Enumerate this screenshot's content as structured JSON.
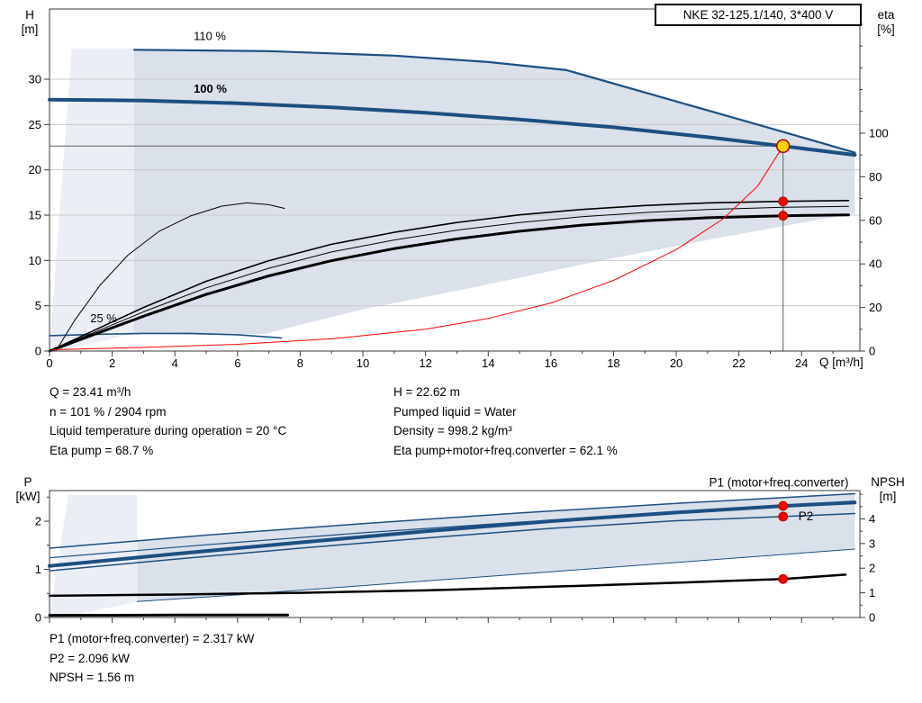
{
  "window": {
    "title_box": "NKE 32-125.1/140, 3*400 V"
  },
  "colors": {
    "curve_blue": "#1c4f82",
    "label_blue": "#2e74b5",
    "band": "#dbe1ea",
    "wedge": "#ebeff5",
    "red": "#ff0000",
    "dot_stroke": "#b00000",
    "duty_yellow": "#ffd200",
    "duty_ring": "#b00000",
    "grid": "#c9c9c9",
    "guide": "#5f5f5f",
    "axis": "#3a3a3a",
    "black": "#000000"
  },
  "chart_data": [
    {
      "name": "hq-chart",
      "type": "line",
      "x": {
        "label": "Q [m³/h]",
        "min": 0,
        "max": 25.86,
        "ticks": [
          0,
          2,
          4,
          6,
          8,
          10,
          12,
          14,
          16,
          18,
          20,
          22,
          24
        ],
        "minor_step": 1,
        "labels": true
      },
      "y_left": {
        "quantity": "H",
        "unit": "[m]",
        "min": 0,
        "max": 37.75,
        "ticks": [
          0,
          5,
          10,
          15,
          20,
          25,
          30
        ],
        "grid": true
      },
      "y_right": {
        "quantity": "eta",
        "unit": "[%]",
        "min": 0,
        "max": 157,
        "ticks": [
          0,
          20,
          40,
          60,
          80,
          100
        ],
        "minor_step": 10
      },
      "bands": [
        {
          "name": "min-flow-wedge",
          "fill": "wedge",
          "points": [
            [
              0,
              0
            ],
            [
              0.7,
              33.4
            ],
            [
              2.8,
              33.4
            ],
            [
              2.8,
              2.0
            ],
            [
              0.8,
              0.4
            ]
          ]
        },
        {
          "name": "operating-envelope",
          "fill": "band",
          "points": [
            [
              2.7,
              33.25
            ],
            [
              7,
              33.1
            ],
            [
              11,
              32.6
            ],
            [
              14,
              31.9
            ],
            [
              16.5,
              31.0
            ],
            [
              20,
              27.55
            ],
            [
              23,
              24.6
            ],
            [
              25.7,
              21.9
            ],
            [
              25.7,
              15.2
            ],
            [
              21.5,
              12.6
            ],
            [
              17.5,
              9.9
            ],
            [
              13.5,
              7.0
            ],
            [
              10,
              4.6
            ],
            [
              8,
              2.9
            ],
            [
              6.9,
              1.9
            ],
            [
              4.5,
              1.8
            ],
            [
              2.7,
              1.95
            ]
          ]
        }
      ],
      "guides": [
        {
          "type": "h",
          "v": 22.62,
          "q1": 0,
          "q2": 23.41
        },
        {
          "type": "v",
          "q": 23.41,
          "v1": 0,
          "v2": 22.62
        }
      ],
      "series": [
        {
          "name": "curve-110pct",
          "axis": "left",
          "color": "curve_blue",
          "width": 2.2,
          "points": [
            [
              2.7,
              33.25
            ],
            [
              7,
              33.1
            ],
            [
              11,
              32.6
            ],
            [
              14,
              31.9
            ],
            [
              16.5,
              31.0
            ],
            [
              20,
              27.55
            ],
            [
              23,
              24.6
            ],
            [
              25.7,
              21.9
            ]
          ]
        },
        {
          "name": "curve-100pct",
          "axis": "left",
          "color": "curve_blue",
          "width": 4,
          "points": [
            [
              0,
              27.75
            ],
            [
              3,
              27.65
            ],
            [
              6,
              27.35
            ],
            [
              9,
              26.9
            ],
            [
              12,
              26.3
            ],
            [
              15,
              25.55
            ],
            [
              18,
              24.7
            ],
            [
              21,
              23.6
            ],
            [
              23.41,
              22.62
            ],
            [
              25.7,
              21.65
            ]
          ]
        },
        {
          "name": "curve-25pct",
          "axis": "left",
          "color": "curve_blue",
          "width": 1.6,
          "points": [
            [
              0,
              1.7
            ],
            [
              1.5,
              1.85
            ],
            [
              3,
              1.95
            ],
            [
              4.5,
              1.95
            ],
            [
              6,
              1.8
            ],
            [
              7.4,
              1.45
            ]
          ]
        },
        {
          "name": "eta-curve-25pct",
          "axis": "right",
          "color": "black",
          "width": 1,
          "points": [
            [
              0.2,
              0
            ],
            [
              0.8,
              14
            ],
            [
              1.6,
              30
            ],
            [
              2.5,
              44
            ],
            [
              3.5,
              55
            ],
            [
              4.5,
              62
            ],
            [
              5.5,
              66.5
            ],
            [
              6.3,
              68
            ],
            [
              7.0,
              67.2
            ],
            [
              7.5,
              65.5
            ]
          ]
        },
        {
          "name": "eta-pump-curve",
          "axis": "right",
          "color": "black",
          "width": 1.6,
          "points": [
            [
              0,
              0
            ],
            [
              1.5,
              10
            ],
            [
              3,
              20
            ],
            [
              5,
              32
            ],
            [
              7,
              41.5
            ],
            [
              9,
              49
            ],
            [
              11,
              54.5
            ],
            [
              13,
              59
            ],
            [
              15,
              62.5
            ],
            [
              17,
              65
            ],
            [
              19,
              66.8
            ],
            [
              21,
              68
            ],
            [
              23.41,
              68.7
            ],
            [
              25.5,
              69.1
            ]
          ]
        },
        {
          "name": "eta-mid-curve",
          "axis": "right",
          "color": "black",
          "width": 1,
          "points": [
            [
              0,
              0
            ],
            [
              1.5,
              9
            ],
            [
              3,
              18
            ],
            [
              5,
              29
            ],
            [
              7,
              38
            ],
            [
              9,
              45.5
            ],
            [
              11,
              51
            ],
            [
              13,
              55.5
            ],
            [
              15,
              59
            ],
            [
              17,
              61.7
            ],
            [
              19,
              63.6
            ],
            [
              21,
              65
            ],
            [
              23.41,
              66
            ],
            [
              25.5,
              66.4
            ]
          ]
        },
        {
          "name": "eta-total-curve",
          "axis": "right",
          "color": "black",
          "width": 3,
          "points": [
            [
              0,
              0
            ],
            [
              1.5,
              8
            ],
            [
              3,
              16
            ],
            [
              5,
              26
            ],
            [
              7,
              34.5
            ],
            [
              9,
              41.5
            ],
            [
              11,
              47
            ],
            [
              13,
              51.5
            ],
            [
              15,
              55
            ],
            [
              17,
              57.8
            ],
            [
              19,
              59.8
            ],
            [
              21,
              61.2
            ],
            [
              23.41,
              62.1
            ],
            [
              25.5,
              62.5
            ]
          ]
        },
        {
          "name": "control-curve",
          "axis": "left",
          "color": "red",
          "width": 1,
          "points": [
            [
              0.1,
              0.15
            ],
            [
              3,
              0.4
            ],
            [
              6,
              0.75
            ],
            [
              9,
              1.35
            ],
            [
              12,
              2.4
            ],
            [
              14,
              3.6
            ],
            [
              16,
              5.3
            ],
            [
              18,
              7.8
            ],
            [
              20,
              11.2
            ],
            [
              21.5,
              14.6
            ],
            [
              22.6,
              18.2
            ],
            [
              23.41,
              22.62
            ]
          ]
        }
      ],
      "markers": [
        {
          "name": "eta-pump-point",
          "type": "red-dot",
          "axis": "right",
          "q": 23.41,
          "v": 68.7
        },
        {
          "name": "eta-total-point",
          "type": "red-dot",
          "axis": "right",
          "q": 23.41,
          "v": 62.1
        },
        {
          "name": "duty-point",
          "type": "yellow-dot",
          "axis": "left",
          "q": 23.41,
          "v": 22.62
        }
      ],
      "curve_labels": [
        {
          "name": "label-110pct",
          "text": "110 %",
          "q": 4.6,
          "v": 34.3
        },
        {
          "name": "label-100pct",
          "text": "100 %",
          "q": 4.6,
          "v": 28.5,
          "bold": true
        },
        {
          "name": "label-25pct",
          "text": "25 %",
          "q": 1.3,
          "v": 3.2
        }
      ]
    },
    {
      "name": "power-npsh-chart",
      "type": "line",
      "x": {
        "label": "",
        "min": 0,
        "max": 25.86,
        "ticks": [
          0,
          2,
          4,
          6,
          8,
          10,
          12,
          14,
          16,
          18,
          20,
          22,
          24
        ],
        "minor_step": 1,
        "labels": false
      },
      "y_left": {
        "quantity": "P",
        "unit": "[kW]",
        "min": 0,
        "max": 2.636,
        "ticks": [
          0,
          1,
          2
        ],
        "minor_step": 0.5,
        "grid": false
      },
      "y_right": {
        "quantity": "NPSH",
        "unit": "[m]",
        "min": 0,
        "max": 5.15,
        "ticks": [
          0,
          1,
          2,
          3,
          4
        ],
        "minor_step": 0.5
      },
      "bands": [
        {
          "name": "power-wedge",
          "fill": "wedge",
          "points": [
            [
              0,
              0.06
            ],
            [
              0.6,
              2.55
            ],
            [
              2.8,
              2.55
            ],
            [
              2.8,
              0.32
            ],
            [
              1,
              0.08
            ]
          ]
        },
        {
          "name": "power-envelope",
          "fill": "band",
          "points": [
            [
              2.8,
              1.59
            ],
            [
              5,
              1.71
            ],
            [
              10,
              1.95
            ],
            [
              15,
              2.17
            ],
            [
              20,
              2.37
            ],
            [
              25.7,
              2.57
            ],
            [
              25.7,
              1.42
            ],
            [
              21,
              1.19
            ],
            [
              16,
              0.95
            ],
            [
              11,
              0.71
            ],
            [
              6,
              0.47
            ],
            [
              2.8,
              0.33
            ]
          ]
        }
      ],
      "guides": [],
      "series": [
        {
          "name": "p1-110pct-curve",
          "axis": "left",
          "color": "curve_blue",
          "width": 1.5,
          "points": [
            [
              0,
              1.44
            ],
            [
              5,
              1.71
            ],
            [
              10,
              1.95
            ],
            [
              15,
              2.17
            ],
            [
              20,
              2.37
            ],
            [
              25.7,
              2.57
            ]
          ]
        },
        {
          "name": "p2-110pct-curve",
          "axis": "left",
          "color": "curve_blue",
          "width": 1.2,
          "points": [
            [
              0,
              1.24
            ],
            [
              5,
              1.51
            ],
            [
              10,
              1.76
            ],
            [
              15,
              1.98
            ],
            [
              20,
              2.18
            ],
            [
              25.7,
              2.42
            ]
          ]
        },
        {
          "name": "p-band-lower-edge",
          "axis": "left",
          "color": "curve_blue",
          "width": 1,
          "points": [
            [
              2.8,
              0.33
            ],
            [
              6,
              0.47
            ],
            [
              11,
              0.71
            ],
            [
              16,
              0.95
            ],
            [
              21,
              1.19
            ],
            [
              25.7,
              1.42
            ]
          ]
        },
        {
          "name": "p1-curve",
          "axis": "left",
          "color": "curve_blue",
          "width": 4,
          "points": [
            [
              0,
              1.07
            ],
            [
              4,
              1.32
            ],
            [
              8,
              1.56
            ],
            [
              12,
              1.79
            ],
            [
              16,
              2.0
            ],
            [
              20,
              2.18
            ],
            [
              23.41,
              2.317
            ],
            [
              25.7,
              2.39
            ]
          ]
        },
        {
          "name": "p2-curve",
          "axis": "left",
          "color": "curve_blue",
          "width": 1.5,
          "points": [
            [
              0,
              0.97
            ],
            [
              4,
              1.21
            ],
            [
              8,
              1.44
            ],
            [
              12,
              1.65
            ],
            [
              16,
              1.85
            ],
            [
              20,
              2.01
            ],
            [
              23.41,
              2.096
            ],
            [
              25.7,
              2.16
            ]
          ]
        },
        {
          "name": "npsh-curve",
          "axis": "right",
          "color": "black",
          "width": 2.5,
          "points": [
            [
              0,
              0.88
            ],
            [
              4,
              0.93
            ],
            [
              8,
              1.0
            ],
            [
              12,
              1.1
            ],
            [
              16,
              1.25
            ],
            [
              20,
              1.41
            ],
            [
              23.41,
              1.56
            ],
            [
              25.4,
              1.74
            ]
          ]
        },
        {
          "name": "p-25pct-curve",
          "axis": "left",
          "color": "black",
          "width": 3,
          "points": [
            [
              0,
              0.045
            ],
            [
              4,
              0.05
            ],
            [
              7.6,
              0.05
            ]
          ]
        }
      ],
      "markers": [
        {
          "name": "p1-point",
          "type": "red-dot",
          "axis": "left",
          "q": 23.41,
          "v": 2.317
        },
        {
          "name": "p2-point",
          "type": "red-dot",
          "axis": "left",
          "q": 23.41,
          "v": 2.096
        },
        {
          "name": "npsh-point",
          "type": "red-dot",
          "axis": "right",
          "q": 23.41,
          "v": 1.56
        }
      ],
      "curve_labels": [
        {
          "name": "label-p1",
          "text": "P1 (motor+freq.converter)",
          "q": 25.5,
          "v": 2.72,
          "anchor": "end",
          "color": "label_blue",
          "size": 13.5
        },
        {
          "name": "label-p2",
          "text": "P2",
          "q": 23.9,
          "v": 2.02,
          "color": "label_blue",
          "size": 13.5
        }
      ]
    }
  ],
  "info_top": {
    "left": [
      "Q = 23.41 m³/h",
      "n = 101 % / 2904 rpm",
      "Liquid temperature during operation = 20 °C",
      "Eta pump = 68.7 %"
    ],
    "right": [
      "H = 22.62 m",
      "Pumped liquid = Water",
      "Density = 998.2 kg/m³",
      "Eta pump+motor+freq.converter = 62.1 %"
    ]
  },
  "info_bottom": [
    "P1 (motor+freq.converter) = 2.317 kW",
    "P2 = 2.096 kW",
    "NPSH = 1.56 m"
  ]
}
